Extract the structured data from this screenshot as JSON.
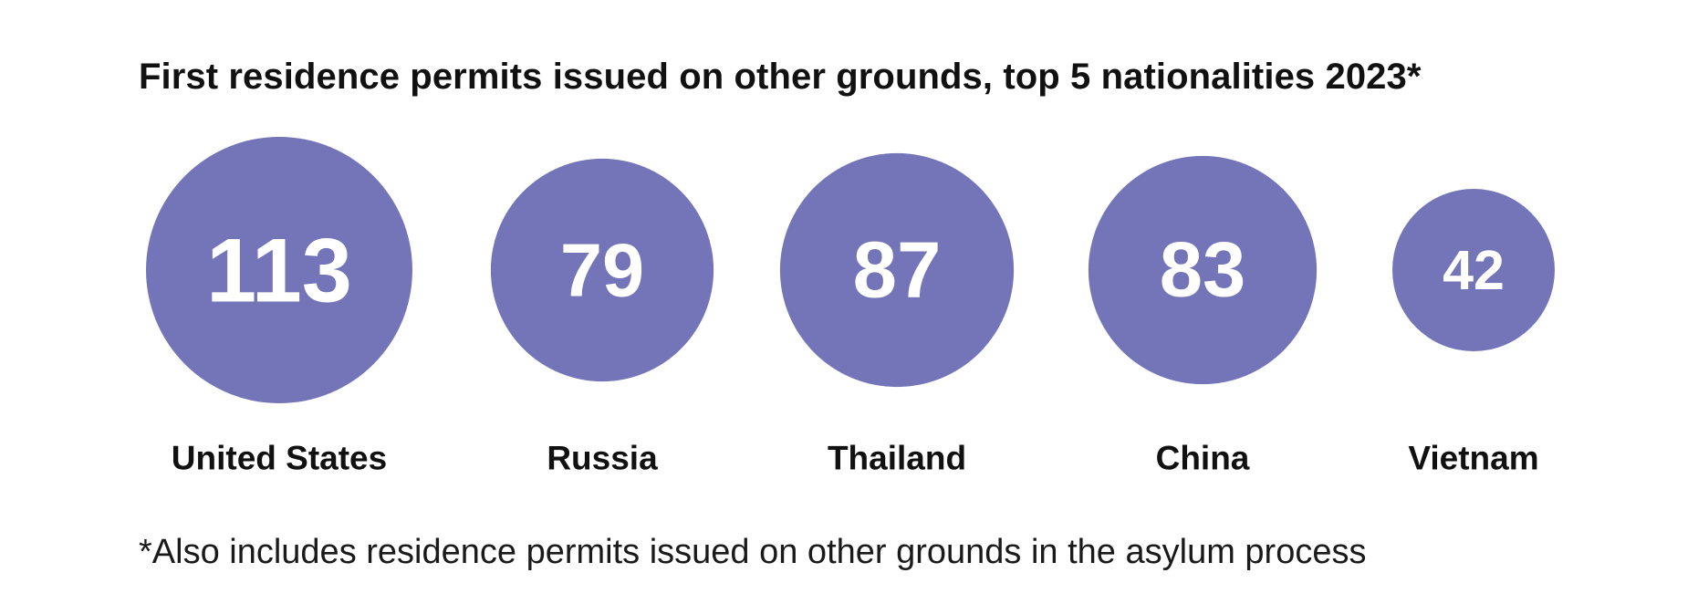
{
  "title": "First residence permits issued on other grounds, top 5 nationalities 2023*",
  "footnote": "*Also includes residence permits issued on other grounds in the asylum process",
  "colors": {
    "bubble": "#7375b8",
    "value_text": "#ffffff",
    "label_text": "#111111"
  },
  "chart_data": {
    "type": "bubble",
    "title": "First residence permits issued on other grounds, top 5 nationalities 2023*",
    "categories": [
      "United States",
      "Russia",
      "Thailand",
      "China",
      "Vietnam"
    ],
    "values": [
      113,
      79,
      87,
      83,
      42
    ],
    "legend": "none",
    "grid": false
  }
}
